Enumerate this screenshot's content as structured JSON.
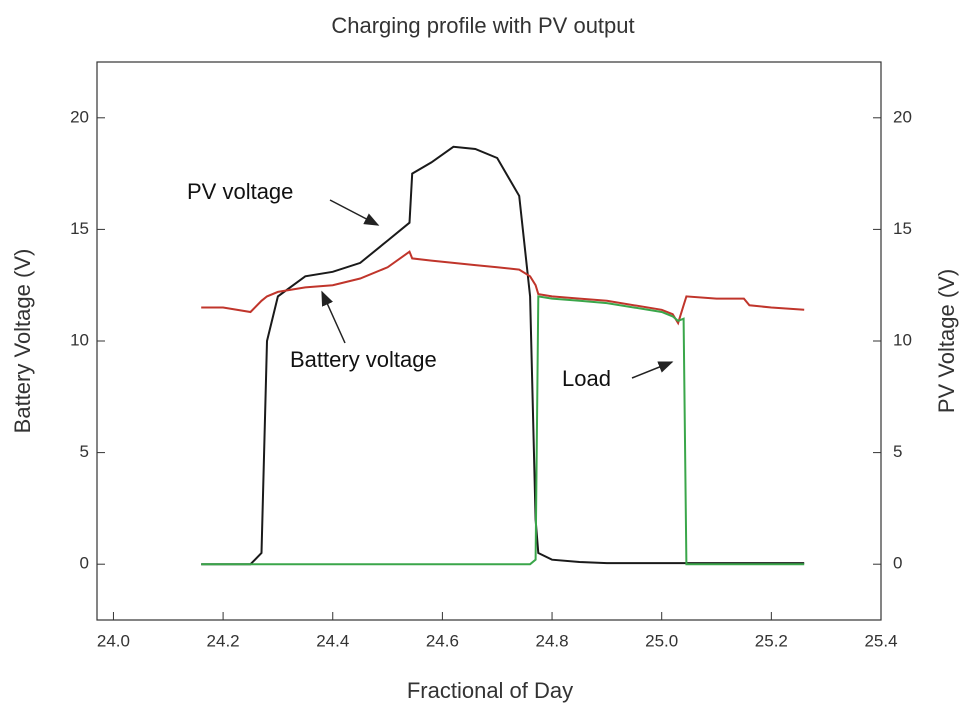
{
  "chart_data": {
    "type": "line",
    "title": "Charging profile with PV output",
    "x_label": "Fractional of Day",
    "y_label": "Battery Voltage (V)",
    "y2_label": "PV Voltage (V)",
    "x": [
      24.16,
      24.2,
      24.25,
      24.27,
      24.28,
      24.3,
      24.35,
      24.4,
      24.45,
      24.5,
      24.54,
      24.545,
      24.58,
      24.62,
      24.66,
      24.7,
      24.74,
      24.76,
      24.77,
      24.775,
      24.8,
      24.85,
      24.9,
      25.0,
      25.02,
      25.03,
      25.04,
      25.045,
      25.1,
      25.15,
      25.16,
      25.2,
      25.26
    ],
    "series": [
      {
        "name": "PV voltage",
        "color": "#1a1a1a",
        "axis": "y2",
        "values": [
          0,
          0,
          0,
          0.5,
          10,
          12,
          12.9,
          13.1,
          13.5,
          14.5,
          15.3,
          17.5,
          18,
          18.7,
          18.6,
          18.2,
          16.5,
          12,
          2,
          0.5,
          0.2,
          0.1,
          0.05,
          0.05,
          0.05,
          0.05,
          0.05,
          0.05,
          0.05,
          0.05,
          0.05,
          0.05,
          0.05
        ]
      },
      {
        "name": "Battery voltage",
        "color": "#c0352b",
        "values": [
          11.5,
          11.5,
          11.3,
          11.8,
          12.0,
          12.2,
          12.4,
          12.5,
          12.8,
          13.3,
          14.0,
          13.7,
          13.6,
          13.5,
          13.4,
          13.3,
          13.2,
          12.9,
          12.5,
          12.1,
          12.0,
          11.9,
          11.8,
          11.4,
          11.2,
          10.8,
          11.6,
          12.0,
          11.9,
          11.9,
          11.6,
          11.5,
          11.4
        ]
      },
      {
        "name": "Load",
        "color": "#3aa64a",
        "values": [
          0,
          0,
          0,
          0,
          0,
          0,
          0,
          0,
          0,
          0,
          0,
          0,
          0,
          0,
          0,
          0,
          0,
          0,
          0.2,
          12.0,
          11.9,
          11.8,
          11.7,
          11.3,
          11.1,
          10.9,
          11.0,
          0,
          0,
          0,
          0,
          0,
          0
        ]
      }
    ],
    "xlim": [
      23.97,
      25.4
    ],
    "xticks": [
      {
        "value": 24,
        "label": "24.0"
      },
      24.2,
      24.4,
      24.6,
      24.8,
      {
        "value": 25,
        "label": "25.0"
      },
      25.2,
      25.4
    ],
    "ylim": [
      -2.5,
      22.5
    ],
    "yticks": [
      0,
      5,
      10,
      15,
      20
    ],
    "y2lim": [
      -2.5,
      22.5
    ],
    "y2ticks": [
      0,
      5,
      10,
      15,
      20
    ]
  }
}
